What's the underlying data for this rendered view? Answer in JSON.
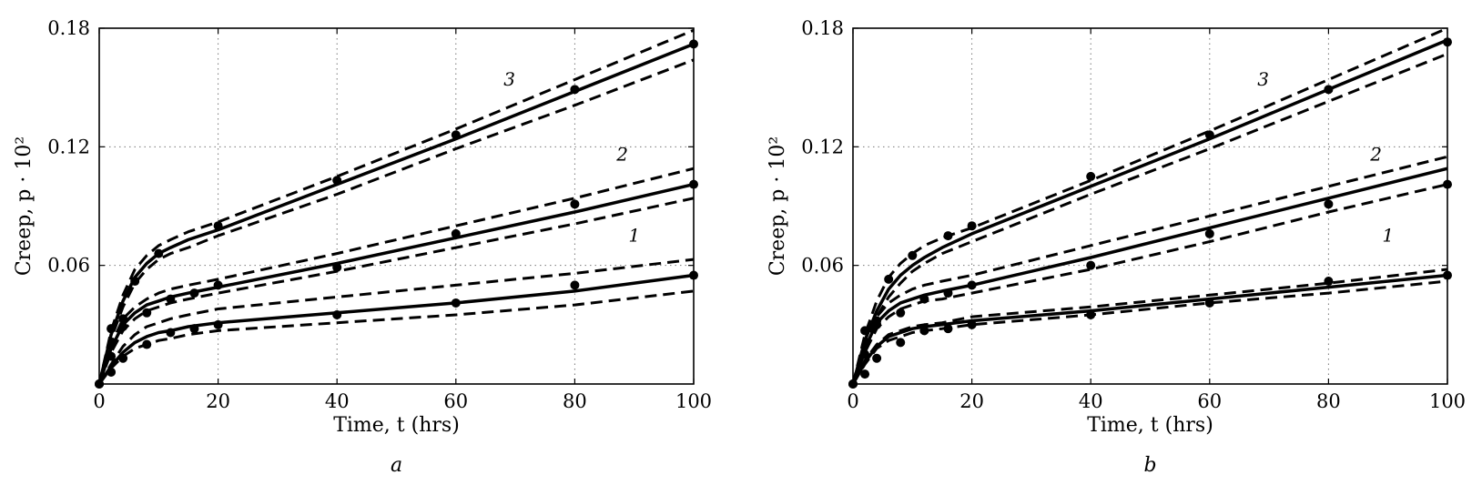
{
  "chart_data": [
    {
      "type": "line",
      "panel_label": "a",
      "xlabel": "Time, t (hrs)",
      "ylabel": "Creep, p · 10²",
      "xlim": [
        0,
        100
      ],
      "ylim": [
        0,
        0.18
      ],
      "xticks": [
        0,
        20,
        40,
        60,
        80,
        100
      ],
      "xtick_labels": [
        "0",
        "20",
        "40",
        "60",
        "80",
        "100"
      ],
      "yticks": [
        0.06,
        0.12,
        0.18
      ],
      "ytick_labels": [
        "0.06",
        "0.12",
        "0.18"
      ],
      "grid": true,
      "series": [
        {
          "label": "1",
          "label_pos": [
            90,
            0.072
          ],
          "model": {
            "x": [
              0,
              2,
              4,
              6,
              8,
              10,
              12,
              15,
              20,
              40,
              60,
              80,
              100
            ],
            "y": [
              0,
              0.009,
              0.016,
              0.021,
              0.024,
              0.026,
              0.027,
              0.029,
              0.031,
              0.036,
              0.041,
              0.047,
              0.055
            ]
          },
          "upper": {
            "x": [
              0,
              2,
              4,
              6,
              8,
              10,
              12,
              15,
              20,
              40,
              60,
              80,
              100
            ],
            "y": [
              0,
              0.01,
              0.019,
              0.025,
              0.029,
              0.031,
              0.033,
              0.035,
              0.038,
              0.044,
              0.05,
              0.056,
              0.063
            ]
          },
          "lower": {
            "x": [
              0,
              2,
              4,
              6,
              8,
              10,
              12,
              15,
              20,
              40,
              60,
              80,
              100
            ],
            "y": [
              0,
              0.008,
              0.014,
              0.018,
              0.02,
              0.022,
              0.023,
              0.025,
              0.027,
              0.031,
              0.035,
              0.04,
              0.047
            ]
          },
          "points": {
            "x": [
              0,
              2,
              4,
              8,
              12,
              16,
              20,
              40,
              60,
              80,
              100
            ],
            "y": [
              0,
              0.006,
              0.013,
              0.02,
              0.026,
              0.028,
              0.03,
              0.035,
              0.041,
              0.05,
              0.055
            ]
          }
        },
        {
          "label": "2",
          "label_pos": [
            88,
            0.113
          ],
          "model": {
            "x": [
              0,
              2,
              4,
              6,
              8,
              10,
              12,
              15,
              20,
              40,
              60,
              80,
              100
            ],
            "y": [
              0,
              0.018,
              0.03,
              0.036,
              0.04,
              0.042,
              0.044,
              0.046,
              0.049,
              0.061,
              0.074,
              0.087,
              0.101
            ]
          },
          "upper": {
            "x": [
              0,
              2,
              4,
              6,
              8,
              10,
              12,
              15,
              20,
              40,
              60,
              80,
              100
            ],
            "y": [
              0,
              0.02,
              0.033,
              0.039,
              0.043,
              0.046,
              0.048,
              0.05,
              0.053,
              0.066,
              0.08,
              0.094,
              0.109
            ]
          },
          "lower": {
            "x": [
              0,
              2,
              4,
              6,
              8,
              10,
              12,
              15,
              20,
              40,
              60,
              80,
              100
            ],
            "y": [
              0,
              0.016,
              0.027,
              0.033,
              0.037,
              0.039,
              0.041,
              0.043,
              0.046,
              0.057,
              0.069,
              0.081,
              0.094
            ]
          },
          "points": {
            "x": [
              0,
              2,
              4,
              8,
              12,
              16,
              20,
              40,
              60,
              80,
              100
            ],
            "y": [
              0,
              0.014,
              0.029,
              0.036,
              0.043,
              0.046,
              0.05,
              0.059,
              0.076,
              0.091,
              0.101
            ]
          }
        },
        {
          "label": "3",
          "label_pos": [
            69,
            0.151
          ],
          "model": {
            "x": [
              0,
              2,
              4,
              6,
              8,
              10,
              12,
              15,
              20,
              40,
              60,
              80,
              100
            ],
            "y": [
              0,
              0.025,
              0.042,
              0.054,
              0.061,
              0.066,
              0.069,
              0.073,
              0.078,
              0.101,
              0.124,
              0.148,
              0.172
            ]
          },
          "upper": {
            "x": [
              0,
              2,
              4,
              6,
              8,
              10,
              12,
              15,
              20,
              40,
              60,
              80,
              100
            ],
            "y": [
              0,
              0.027,
              0.045,
              0.058,
              0.065,
              0.07,
              0.073,
              0.077,
              0.082,
              0.105,
              0.129,
              0.154,
              0.179
            ]
          },
          "lower": {
            "x": [
              0,
              2,
              4,
              6,
              8,
              10,
              12,
              15,
              20,
              40,
              60,
              80,
              100
            ],
            "y": [
              0,
              0.023,
              0.039,
              0.051,
              0.058,
              0.063,
              0.066,
              0.069,
              0.075,
              0.096,
              0.119,
              0.141,
              0.164
            ]
          },
          "points": {
            "x": [
              0,
              2,
              4,
              6,
              10,
              20,
              40,
              60,
              80,
              100
            ],
            "y": [
              0,
              0.028,
              0.033,
              0.052,
              0.066,
              0.08,
              0.103,
              0.126,
              0.149,
              0.172
            ]
          }
        }
      ]
    },
    {
      "type": "line",
      "panel_label": "b",
      "xlabel": "Time, t (hrs)",
      "ylabel": "Creep, p · 10²",
      "xlim": [
        0,
        100
      ],
      "ylim": [
        0,
        0.18
      ],
      "xticks": [
        0,
        20,
        40,
        60,
        80,
        100
      ],
      "xtick_labels": [
        "0",
        "20",
        "40",
        "60",
        "80",
        "100"
      ],
      "yticks": [
        0.06,
        0.12,
        0.18
      ],
      "ytick_labels": [
        "0.06",
        "0.12",
        "0.18"
      ],
      "grid": true,
      "series": [
        {
          "label": "1",
          "label_pos": [
            90,
            0.072
          ],
          "model": {
            "x": [
              0,
              2,
              4,
              6,
              8,
              10,
              12,
              15,
              20,
              40,
              60,
              80,
              100
            ],
            "y": [
              0,
              0.011,
              0.019,
              0.024,
              0.026,
              0.028,
              0.029,
              0.03,
              0.032,
              0.037,
              0.043,
              0.049,
              0.055
            ]
          },
          "upper": {
            "x": [
              0,
              2,
              4,
              6,
              8,
              10,
              12,
              15,
              20,
              40,
              60,
              80,
              100
            ],
            "y": [
              0,
              0.012,
              0.02,
              0.025,
              0.027,
              0.029,
              0.03,
              0.031,
              0.034,
              0.039,
              0.045,
              0.051,
              0.058
            ]
          },
          "lower": {
            "x": [
              0,
              2,
              4,
              6,
              8,
              10,
              12,
              15,
              20,
              40,
              60,
              80,
              100
            ],
            "y": [
              0,
              0.01,
              0.018,
              0.022,
              0.024,
              0.026,
              0.027,
              0.028,
              0.03,
              0.035,
              0.041,
              0.046,
              0.052
            ]
          },
          "points": {
            "x": [
              0,
              2,
              4,
              8,
              12,
              16,
              20,
              40,
              60,
              80,
              100
            ],
            "y": [
              0,
              0.005,
              0.013,
              0.021,
              0.027,
              0.028,
              0.03,
              0.035,
              0.041,
              0.052,
              0.055
            ]
          }
        },
        {
          "label": "2",
          "label_pos": [
            88,
            0.113
          ],
          "model": {
            "x": [
              0,
              2,
              4,
              6,
              8,
              10,
              12,
              15,
              20,
              40,
              60,
              80,
              100
            ],
            "y": [
              0,
              0.018,
              0.031,
              0.037,
              0.041,
              0.043,
              0.045,
              0.047,
              0.05,
              0.064,
              0.079,
              0.094,
              0.109
            ]
          },
          "upper": {
            "x": [
              0,
              2,
              4,
              6,
              8,
              10,
              12,
              15,
              20,
              40,
              60,
              80,
              100
            ],
            "y": [
              0,
              0.02,
              0.034,
              0.041,
              0.045,
              0.048,
              0.05,
              0.052,
              0.055,
              0.07,
              0.085,
              0.1,
              0.115
            ]
          },
          "lower": {
            "x": [
              0,
              2,
              4,
              6,
              8,
              10,
              12,
              15,
              20,
              40,
              60,
              80,
              100
            ],
            "y": [
              0,
              0.016,
              0.028,
              0.034,
              0.038,
              0.04,
              0.042,
              0.043,
              0.046,
              0.058,
              0.072,
              0.087,
              0.101
            ]
          },
          "points": {
            "x": [
              0,
              2,
              4,
              8,
              12,
              16,
              20,
              40,
              60,
              80,
              100
            ],
            "y": [
              0,
              0.015,
              0.03,
              0.036,
              0.043,
              0.046,
              0.05,
              0.06,
              0.076,
              0.091,
              0.101
            ]
          }
        },
        {
          "label": "3",
          "label_pos": [
            69,
            0.151
          ],
          "model": {
            "x": [
              0,
              2,
              4,
              6,
              8,
              10,
              12,
              15,
              20,
              40,
              60,
              80,
              100
            ],
            "y": [
              0,
              0.022,
              0.037,
              0.048,
              0.055,
              0.06,
              0.064,
              0.069,
              0.076,
              0.1,
              0.124,
              0.149,
              0.174
            ]
          },
          "upper": {
            "x": [
              0,
              2,
              4,
              6,
              8,
              10,
              12,
              15,
              20,
              40,
              60,
              80,
              100
            ],
            "y": [
              0,
              0.025,
              0.042,
              0.054,
              0.061,
              0.066,
              0.07,
              0.074,
              0.079,
              0.103,
              0.128,
              0.154,
              0.18
            ]
          },
          "lower": {
            "x": [
              0,
              2,
              4,
              6,
              8,
              10,
              12,
              15,
              20,
              40,
              60,
              80,
              100
            ],
            "y": [
              0,
              0.02,
              0.034,
              0.044,
              0.051,
              0.057,
              0.061,
              0.066,
              0.072,
              0.096,
              0.119,
              0.143,
              0.167
            ]
          },
          "points": {
            "x": [
              0,
              2,
              4,
              6,
              10,
              16,
              20,
              40,
              60,
              80,
              100
            ],
            "y": [
              0,
              0.027,
              0.032,
              0.053,
              0.065,
              0.075,
              0.08,
              0.105,
              0.126,
              0.149,
              0.173
            ]
          }
        }
      ]
    }
  ]
}
